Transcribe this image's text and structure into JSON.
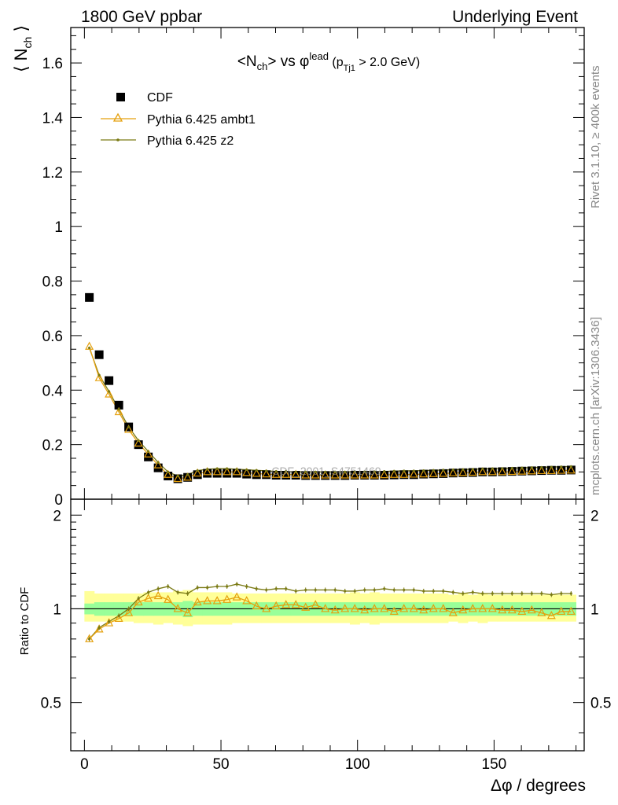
{
  "header": {
    "left": "1800 GeV ppbar",
    "right": "Underlying Event"
  },
  "side_text": {
    "top": "Rivet 3.1.10, ≥ 400k events",
    "bottom": "mcplots.cern.ch [arXiv:1306.3436]"
  },
  "watermark": "CDF_2001_S4751469",
  "chart_data": [
    {
      "type": "scatter",
      "panel": "main",
      "title": "⟨N_ch⟩ vs φ^lead (p_Tj1 > 2.0 GeV)",
      "ylabel": "⟨N_ch⟩",
      "xlim": [
        -5,
        183
      ],
      "ylim": [
        0,
        1.73
      ],
      "yticks": [
        0,
        0.2,
        0.4,
        0.6,
        0.8,
        1,
        1.2,
        1.4,
        1.6
      ],
      "ytick_labels": [
        "0",
        "0.2",
        "0.4",
        "0.6",
        "0.8",
        "1",
        "1.2",
        "1.4",
        "1.6"
      ],
      "legend": [
        "CDF",
        "Pythia 6.425 ambt1",
        "Pythia 6.425 z2"
      ],
      "legend_position": "top-left",
      "x": [
        1.8,
        5.4,
        9,
        12.6,
        16.2,
        19.8,
        23.4,
        27,
        30.6,
        34.2,
        37.8,
        41.4,
        45,
        48.6,
        52.2,
        55.8,
        59.4,
        63,
        66.6,
        70.2,
        73.8,
        77.4,
        81,
        84.6,
        88.2,
        91.8,
        95.4,
        99,
        102.6,
        106.2,
        109.8,
        113.4,
        117,
        120.6,
        124.2,
        127.8,
        131.4,
        135,
        138.6,
        142.2,
        145.8,
        149.4,
        153,
        156.6,
        160.2,
        163.8,
        167.4,
        171,
        174.6,
        178.2
      ],
      "series": [
        {
          "name": "CDF",
          "marker": "filled-square",
          "color": "#000000",
          "values": [
            0.74,
            0.53,
            0.435,
            0.345,
            0.265,
            0.2,
            0.155,
            0.115,
            0.085,
            0.075,
            0.08,
            0.09,
            0.095,
            0.095,
            0.095,
            0.095,
            0.092,
            0.09,
            0.09,
            0.088,
            0.088,
            0.088,
            0.087,
            0.087,
            0.087,
            0.087,
            0.087,
            0.088,
            0.088,
            0.088,
            0.088,
            0.089,
            0.09,
            0.09,
            0.092,
            0.093,
            0.094,
            0.096,
            0.097,
            0.098,
            0.1,
            0.1,
            0.101,
            0.102,
            0.103,
            0.104,
            0.105,
            0.106,
            0.106,
            0.107
          ]
        },
        {
          "name": "Pythia 6.425 ambt1",
          "marker": "open-triangle",
          "color": "#e5a00d",
          "values": [
            0.56,
            0.445,
            0.385,
            0.32,
            0.255,
            0.205,
            0.165,
            0.125,
            0.09,
            0.075,
            0.08,
            0.095,
            0.1,
            0.1,
            0.1,
            0.1,
            0.097,
            0.094,
            0.092,
            0.09,
            0.09,
            0.09,
            0.088,
            0.088,
            0.088,
            0.088,
            0.088,
            0.088,
            0.088,
            0.088,
            0.089,
            0.09,
            0.09,
            0.091,
            0.092,
            0.093,
            0.094,
            0.096,
            0.097,
            0.098,
            0.1,
            0.1,
            0.1,
            0.101,
            0.102,
            0.103,
            0.104,
            0.104,
            0.105,
            0.106
          ]
        },
        {
          "name": "Pythia 6.425 z2",
          "marker": "small-dot",
          "color": "#7a7a14",
          "values": [
            0.555,
            0.455,
            0.395,
            0.33,
            0.265,
            0.215,
            0.175,
            0.135,
            0.1,
            0.085,
            0.09,
            0.105,
            0.11,
            0.112,
            0.112,
            0.11,
            0.108,
            0.106,
            0.104,
            0.102,
            0.102,
            0.1,
            0.1,
            0.1,
            0.1,
            0.1,
            0.1,
            0.101,
            0.101,
            0.101,
            0.102,
            0.103,
            0.104,
            0.104,
            0.105,
            0.106,
            0.107,
            0.108,
            0.109,
            0.11,
            0.111,
            0.112,
            0.113,
            0.114,
            0.115,
            0.116,
            0.117,
            0.118,
            0.119,
            0.12
          ]
        }
      ]
    },
    {
      "type": "line",
      "panel": "ratio",
      "ylabel": "Ratio to CDF",
      "xlabel": "Δφ / degrees",
      "xlim": [
        -5,
        183
      ],
      "xticks": [
        0,
        50,
        100,
        150
      ],
      "xtick_labels": [
        "0",
        "50",
        "100",
        "150"
      ],
      "ylim": [
        0.35,
        2.25
      ],
      "yscale": "log",
      "yticks": [
        0.5,
        1,
        2
      ],
      "ytick_labels": [
        "0.5",
        "1",
        "2"
      ],
      "x": [
        1.8,
        5.4,
        9,
        12.6,
        16.2,
        19.8,
        23.4,
        27,
        30.6,
        34.2,
        37.8,
        41.4,
        45,
        48.6,
        52.2,
        55.8,
        59.4,
        63,
        66.6,
        70.2,
        73.8,
        77.4,
        81,
        84.6,
        88.2,
        91.8,
        95.4,
        99,
        102.6,
        106.2,
        109.8,
        113.4,
        117,
        120.6,
        124.2,
        127.8,
        131.4,
        135,
        138.6,
        142.2,
        145.8,
        149.4,
        153,
        156.6,
        160.2,
        163.8,
        167.4,
        171,
        174.6,
        178.2
      ],
      "bands": {
        "stat_low": [
          0.96,
          0.95,
          0.95,
          0.95,
          0.95,
          0.95,
          0.95,
          0.95,
          0.95,
          0.95,
          0.94,
          0.95,
          0.95,
          0.95,
          0.95,
          0.95,
          0.95,
          0.95,
          0.95,
          0.95,
          0.95,
          0.95,
          0.95,
          0.95,
          0.95,
          0.95,
          0.95,
          0.95,
          0.95,
          0.95,
          0.95,
          0.95,
          0.95,
          0.95,
          0.95,
          0.95,
          0.95,
          0.95,
          0.95,
          0.95,
          0.95,
          0.95,
          0.95,
          0.95,
          0.95,
          0.95,
          0.95,
          0.95,
          0.95,
          0.95
        ],
        "stat_high": [
          1.04,
          1.05,
          1.05,
          1.05,
          1.05,
          1.05,
          1.05,
          1.05,
          1.05,
          1.05,
          1.06,
          1.05,
          1.05,
          1.05,
          1.05,
          1.05,
          1.05,
          1.05,
          1.05,
          1.05,
          1.05,
          1.05,
          1.05,
          1.05,
          1.05,
          1.05,
          1.05,
          1.05,
          1.05,
          1.05,
          1.05,
          1.05,
          1.05,
          1.05,
          1.05,
          1.05,
          1.05,
          1.05,
          1.05,
          1.05,
          1.05,
          1.05,
          1.05,
          1.05,
          1.05,
          1.05,
          1.05,
          1.05,
          1.05,
          1.05
        ],
        "total_low": [
          0.91,
          0.91,
          0.91,
          0.91,
          0.91,
          0.9,
          0.9,
          0.89,
          0.9,
          0.89,
          0.88,
          0.89,
          0.89,
          0.89,
          0.89,
          0.9,
          0.9,
          0.9,
          0.9,
          0.9,
          0.9,
          0.9,
          0.9,
          0.9,
          0.9,
          0.9,
          0.9,
          0.89,
          0.9,
          0.89,
          0.9,
          0.9,
          0.9,
          0.9,
          0.9,
          0.9,
          0.9,
          0.91,
          0.9,
          0.91,
          0.9,
          0.91,
          0.91,
          0.91,
          0.91,
          0.91,
          0.91,
          0.91,
          0.91,
          0.91
        ],
        "total_high": [
          1.14,
          1.12,
          1.12,
          1.12,
          1.12,
          1.12,
          1.13,
          1.13,
          1.13,
          1.14,
          1.15,
          1.13,
          1.13,
          1.13,
          1.13,
          1.12,
          1.12,
          1.12,
          1.12,
          1.12,
          1.12,
          1.12,
          1.12,
          1.12,
          1.12,
          1.12,
          1.12,
          1.13,
          1.12,
          1.13,
          1.12,
          1.12,
          1.12,
          1.12,
          1.12,
          1.12,
          1.12,
          1.11,
          1.12,
          1.11,
          1.12,
          1.11,
          1.11,
          1.11,
          1.11,
          1.11,
          1.11,
          1.11,
          1.11,
          1.11
        ]
      },
      "series": [
        {
          "name": "Pythia 6.425 ambt1",
          "color": "#e5a00d",
          "marker": "open-triangle",
          "values": [
            0.8,
            0.86,
            0.9,
            0.93,
            0.97,
            1.05,
            1.08,
            1.1,
            1.07,
            1.0,
            0.97,
            1.05,
            1.06,
            1.06,
            1.07,
            1.09,
            1.06,
            1.02,
            1.0,
            1.02,
            1.03,
            1.03,
            1.01,
            1.03,
            1.0,
            0.99,
            1.0,
            1.0,
            0.99,
            1.0,
            1.0,
            0.98,
            1.0,
            1.0,
            0.99,
            1.0,
            1.0,
            0.97,
            0.99,
            1.0,
            1.0,
            1.0,
            0.99,
            0.99,
            0.98,
            0.99,
            0.97,
            0.95,
            0.98,
            0.98
          ]
        },
        {
          "name": "Pythia 6.425 z2",
          "color": "#7a7a14",
          "marker": "small-dot",
          "values": [
            0.8,
            0.87,
            0.91,
            0.95,
            1.0,
            1.08,
            1.13,
            1.16,
            1.18,
            1.13,
            1.12,
            1.17,
            1.17,
            1.18,
            1.18,
            1.2,
            1.18,
            1.16,
            1.15,
            1.16,
            1.16,
            1.14,
            1.15,
            1.15,
            1.15,
            1.15,
            1.14,
            1.14,
            1.15,
            1.15,
            1.16,
            1.15,
            1.15,
            1.15,
            1.14,
            1.14,
            1.14,
            1.13,
            1.12,
            1.13,
            1.12,
            1.12,
            1.12,
            1.12,
            1.12,
            1.12,
            1.12,
            1.11,
            1.12,
            1.12
          ]
        }
      ]
    }
  ]
}
